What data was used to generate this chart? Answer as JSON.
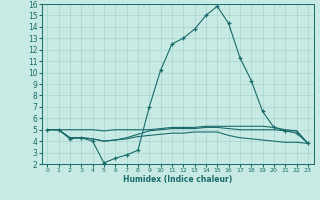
{
  "xlabel": "Humidex (Indice chaleur)",
  "ylabel": "",
  "xlim": [
    -0.5,
    23.5
  ],
  "ylim": [
    2,
    16
  ],
  "xticks": [
    0,
    1,
    2,
    3,
    4,
    5,
    6,
    7,
    8,
    9,
    10,
    11,
    12,
    13,
    14,
    15,
    16,
    17,
    18,
    19,
    20,
    21,
    22,
    23
  ],
  "yticks": [
    2,
    3,
    4,
    5,
    6,
    7,
    8,
    9,
    10,
    11,
    12,
    13,
    14,
    15,
    16
  ],
  "background_color": "#c8eae4",
  "grid_color": "#a8d5ce",
  "line_color": "#1a6b6b",
  "line1_x": [
    0,
    1,
    2,
    3,
    4,
    5,
    6,
    7,
    8,
    9,
    10,
    11,
    12,
    13,
    14,
    15,
    16,
    17,
    18,
    19,
    20,
    21,
    22,
    23
  ],
  "line1_y": [
    5.0,
    5.0,
    4.2,
    4.3,
    4.0,
    2.1,
    2.5,
    2.8,
    3.2,
    7.0,
    10.2,
    12.5,
    13.0,
    13.8,
    15.0,
    15.8,
    14.3,
    11.3,
    9.3,
    6.6,
    5.2,
    4.9,
    4.7,
    3.8
  ],
  "line2_x": [
    0,
    1,
    2,
    3,
    4,
    5,
    6,
    7,
    8,
    9,
    10,
    11,
    12,
    13,
    14,
    15,
    16,
    17,
    18,
    19,
    20,
    21,
    22,
    23
  ],
  "line2_y": [
    5.0,
    5.0,
    5.0,
    5.0,
    5.0,
    4.9,
    5.0,
    5.0,
    5.0,
    5.0,
    5.1,
    5.2,
    5.2,
    5.2,
    5.3,
    5.3,
    5.3,
    5.3,
    5.3,
    5.3,
    5.2,
    5.0,
    4.9,
    3.8
  ],
  "line3_x": [
    0,
    1,
    2,
    3,
    4,
    5,
    6,
    7,
    8,
    9,
    10,
    11,
    12,
    13,
    14,
    15,
    16,
    17,
    18,
    19,
    20,
    21,
    22,
    23
  ],
  "line3_y": [
    5.0,
    5.0,
    4.3,
    4.3,
    4.2,
    4.0,
    4.1,
    4.2,
    4.4,
    4.5,
    4.6,
    4.7,
    4.7,
    4.8,
    4.8,
    4.8,
    4.5,
    4.3,
    4.2,
    4.1,
    4.0,
    3.9,
    3.9,
    3.8
  ],
  "line4_x": [
    0,
    1,
    2,
    3,
    4,
    5,
    6,
    7,
    8,
    9,
    10,
    11,
    12,
    13,
    14,
    15,
    16,
    17,
    18,
    19,
    20,
    21,
    22,
    23
  ],
  "line4_y": [
    5.0,
    5.0,
    4.3,
    4.3,
    4.2,
    4.0,
    4.1,
    4.3,
    4.6,
    4.9,
    5.0,
    5.1,
    5.1,
    5.1,
    5.2,
    5.2,
    5.1,
    5.0,
    5.0,
    5.0,
    5.0,
    4.9,
    4.9,
    3.8
  ]
}
